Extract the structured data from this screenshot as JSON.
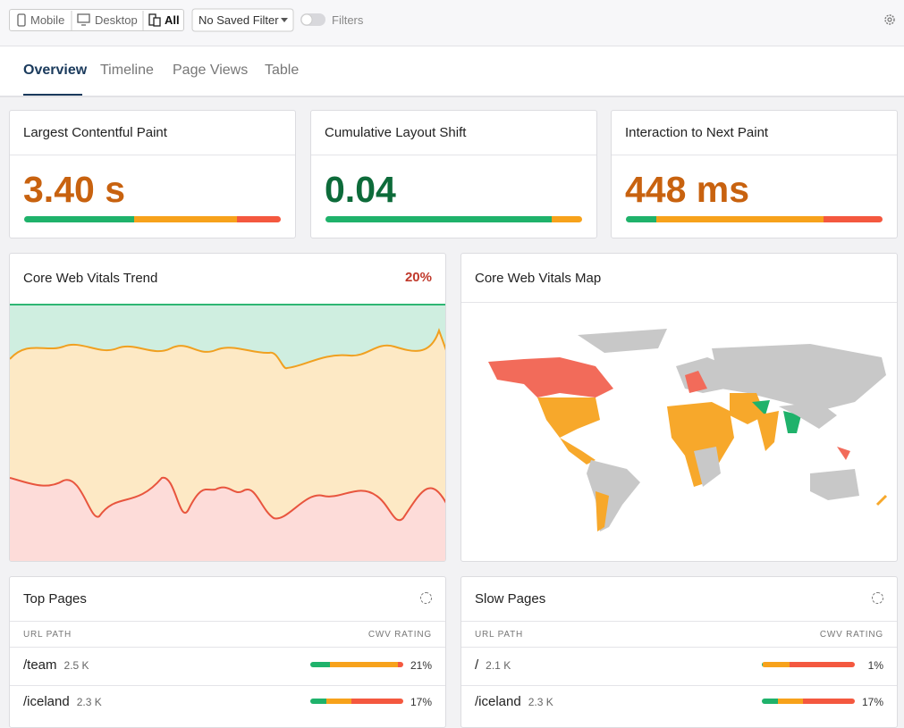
{
  "toolbar": {
    "devices": [
      "Mobile",
      "Desktop",
      "All"
    ],
    "filter": "No Saved Filter",
    "filters_toggle": "Filters"
  },
  "tabs": [
    "Overview",
    "Timeline",
    "Page Views",
    "Table"
  ],
  "rating_colors": [
    "#1fb26b",
    "#f7a21b",
    "#f4583f"
  ],
  "metrics": [
    {
      "title": "Largest Contentful Paint",
      "value": "3.40 s",
      "color": "#c8620f",
      "segments": [
        43,
        40,
        17
      ]
    },
    {
      "title": "Cumulative Layout Shift",
      "value": "0.04",
      "color": "#0d6b3a",
      "segments": [
        88,
        12
      ]
    },
    {
      "title": "Interaction to Next Paint",
      "value": "448 ms",
      "color": "#c8620f",
      "segments": [
        12,
        65,
        23
      ]
    }
  ],
  "trend": {
    "title": "Core Web Vitals Trend",
    "value": "20%"
  },
  "map": {
    "title": "Core Web Vitals Map"
  },
  "top_pages": {
    "title": "Top Pages",
    "columns": [
      "URL PATH",
      "CWV RATING"
    ],
    "rows": [
      {
        "path": "/team",
        "views": "2.5 K",
        "rating": "21%",
        "segments": [
          21,
          73,
          6
        ]
      },
      {
        "path": "/iceland",
        "views": "2.3 K",
        "rating": "17%",
        "segments": [
          17,
          27,
          56
        ]
      }
    ]
  },
  "slow_pages": {
    "title": "Slow Pages",
    "columns": [
      "URL PATH",
      "CWV RATING"
    ],
    "rows": [
      {
        "path": "/",
        "views": "2.1 K",
        "rating": "1%",
        "segments": [
          1,
          29,
          70
        ]
      },
      {
        "path": "/iceland",
        "views": "2.3 K",
        "rating": "17%",
        "segments": [
          17,
          27,
          56
        ]
      }
    ]
  }
}
